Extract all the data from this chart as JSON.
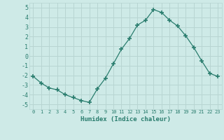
{
  "x": [
    0,
    1,
    2,
    3,
    4,
    5,
    6,
    7,
    8,
    9,
    10,
    11,
    12,
    13,
    14,
    15,
    16,
    17,
    18,
    19,
    20,
    21,
    22,
    23
  ],
  "y": [
    -2.1,
    -2.8,
    -3.3,
    -3.5,
    -4.0,
    -4.3,
    -4.6,
    -4.8,
    -3.4,
    -2.3,
    -0.8,
    0.7,
    1.8,
    3.2,
    3.7,
    4.8,
    4.5,
    3.7,
    3.1,
    2.1,
    0.9,
    -0.5,
    -1.8,
    -2.1
  ],
  "line_color": "#2a7d6e",
  "marker": "+",
  "marker_size": 4,
  "xlabel": "Humidex (Indice chaleur)",
  "ylim": [
    -5.5,
    5.5
  ],
  "xlim": [
    -0.5,
    23.5
  ],
  "yticks": [
    -5,
    -4,
    -3,
    -2,
    -1,
    0,
    1,
    2,
    3,
    4,
    5
  ],
  "xticks": [
    0,
    1,
    2,
    3,
    4,
    5,
    6,
    7,
    8,
    9,
    10,
    11,
    12,
    13,
    14,
    15,
    16,
    17,
    18,
    19,
    20,
    21,
    22,
    23
  ],
  "bg_color": "#ceeae7",
  "grid_color": "#b8d5d2",
  "tick_color": "#2a7d6e",
  "label_color": "#2a7d6e"
}
